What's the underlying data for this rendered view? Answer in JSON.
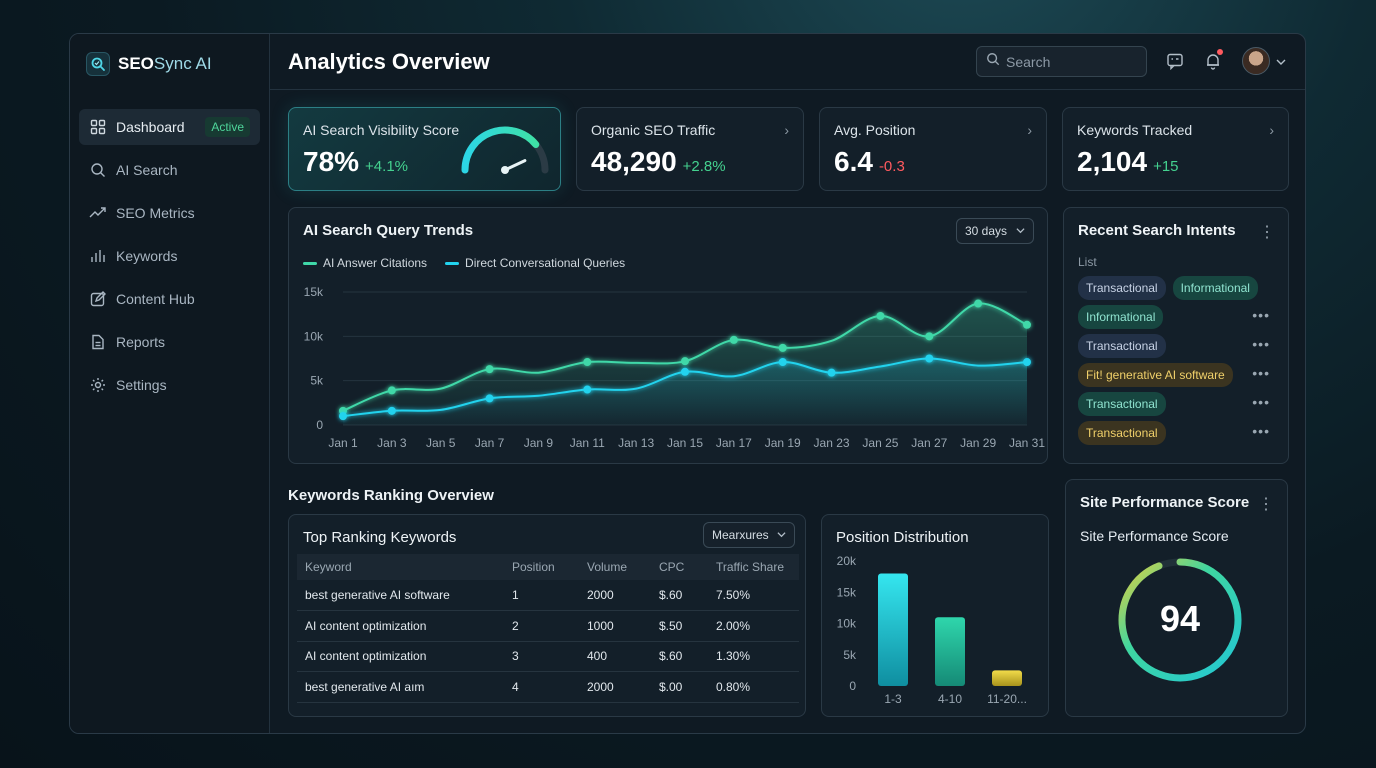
{
  "brand": {
    "name_bold": "SEO",
    "name_rest": "Sync AI"
  },
  "sidebar": {
    "items": [
      {
        "label": "Dashboard",
        "icon": "grid-icon",
        "badge": "Active",
        "active": true
      },
      {
        "label": "AI Search",
        "icon": "search-icon"
      },
      {
        "label": "SEO Metrics",
        "icon": "trend-icon"
      },
      {
        "label": "Keywords",
        "icon": "bars-icon"
      },
      {
        "label": "Content Hub",
        "icon": "edit-icon"
      },
      {
        "label": "Reports",
        "icon": "document-icon"
      },
      {
        "label": "Settings",
        "icon": "gear-icon"
      }
    ]
  },
  "header": {
    "title": "Analytics Overview",
    "search_placeholder": "Search"
  },
  "kpis": [
    {
      "label": "AI Search Visibility Score",
      "value": "78%",
      "delta": "+4.1%",
      "gauge_level": 0.78
    },
    {
      "label": "Organic SEO Traffic",
      "value": "48,290",
      "delta": "+2.8%"
    },
    {
      "label": "Avg. Position",
      "value": "6.4",
      "delta": "-0.3"
    },
    {
      "label": "Keywords Tracked",
      "value": "2,104",
      "delta": "+15"
    }
  ],
  "trends": {
    "title": "AI Search Query Trends",
    "range_label": "30 days"
  },
  "chart_data": [
    {
      "type": "line",
      "title": "AI Search Query Trends",
      "x": [
        "Jan 1",
        "Jan 3",
        "Jan 5",
        "Jan 7",
        "Jan 9",
        "Jan 11",
        "Jan 13",
        "Jan 15",
        "Jan 17",
        "Jan 19",
        "Jan 23",
        "Jan 25",
        "Jan 27",
        "Jan 29",
        "Jan 31"
      ],
      "yticks": [
        "0",
        "5k",
        "10k",
        "15k"
      ],
      "ylim": [
        0,
        15000
      ],
      "series": [
        {
          "name": "AI Answer Citations",
          "color": "#3fd8a8",
          "values": [
            1600,
            3900,
            4100,
            6300,
            5900,
            7100,
            7000,
            7200,
            9600,
            8700,
            9500,
            12300,
            10000,
            13700,
            11300
          ]
        },
        {
          "name": "Direct Conversational Queries",
          "color": "#22d3ee",
          "values": [
            1000,
            1600,
            1700,
            3000,
            3300,
            4000,
            4100,
            6000,
            5500,
            7100,
            5900,
            6600,
            7500,
            6700,
            7100
          ]
        }
      ],
      "markers": {
        "AI Answer Citations": [
          0,
          1,
          3,
          5,
          7,
          8,
          9,
          11,
          12,
          13,
          14
        ],
        "Direct Conversational Queries": [
          0,
          1,
          3,
          5,
          7,
          9,
          10,
          12,
          14
        ]
      },
      "grid": true,
      "legend": "top-left"
    },
    {
      "type": "bar",
      "title": "Position Distribution",
      "categories": [
        "1-3",
        "4-10",
        "11-20..."
      ],
      "values": [
        18000,
        11000,
        2500
      ],
      "colors": [
        "#27d3e0",
        "#1fbf9d",
        "#d8c23a"
      ],
      "yticks": [
        "0",
        "5k",
        "10k",
        "15k",
        "20k"
      ],
      "ylim": [
        0,
        20000
      ]
    }
  ],
  "intents": {
    "title": "Recent Search Intents",
    "list_label": "List",
    "rows": [
      {
        "pills": [
          {
            "text": "Transactional",
            "style": "slate"
          },
          {
            "text": "Informational",
            "style": "teal"
          }
        ],
        "menu": false
      },
      {
        "pills": [
          {
            "text": "Informational",
            "style": "teal"
          }
        ],
        "menu": true
      },
      {
        "pills": [
          {
            "text": "Transactional",
            "style": "slate"
          }
        ],
        "menu": true
      },
      {
        "pills": [
          {
            "text": "Fit! generative AI software",
            "style": "gold"
          }
        ],
        "menu": true
      },
      {
        "pills": [
          {
            "text": "Transactional",
            "style": "teal"
          }
        ],
        "menu": true
      },
      {
        "pills": [
          {
            "text": "Transactional",
            "style": "gold"
          }
        ],
        "menu": true
      }
    ]
  },
  "keywords": {
    "section_title": "Keywords Ranking Overview",
    "card_title": "Top Ranking Keywords",
    "dropdown_label": "Mearxures",
    "columns": [
      "Keyword",
      "Position",
      "Volume",
      "CPC",
      "Traffic Share"
    ],
    "rows": [
      [
        "best generative AI software",
        "1",
        "2000",
        "$.60",
        "7.50%"
      ],
      [
        "AI content optimization",
        "2",
        "1000",
        "$.50",
        "2.00%"
      ],
      [
        "AI content optimization",
        "3",
        "400",
        "$.60",
        "1.30%"
      ],
      [
        "best generative AI aım",
        "4",
        "2000",
        "$.00",
        "0.80%"
      ]
    ]
  },
  "distribution": {
    "title": "Position Distribution"
  },
  "site_score": {
    "card_title": "Site Performance Score",
    "subtitle": "Site Performance Score",
    "score": "94",
    "score_fraction": 0.94
  }
}
